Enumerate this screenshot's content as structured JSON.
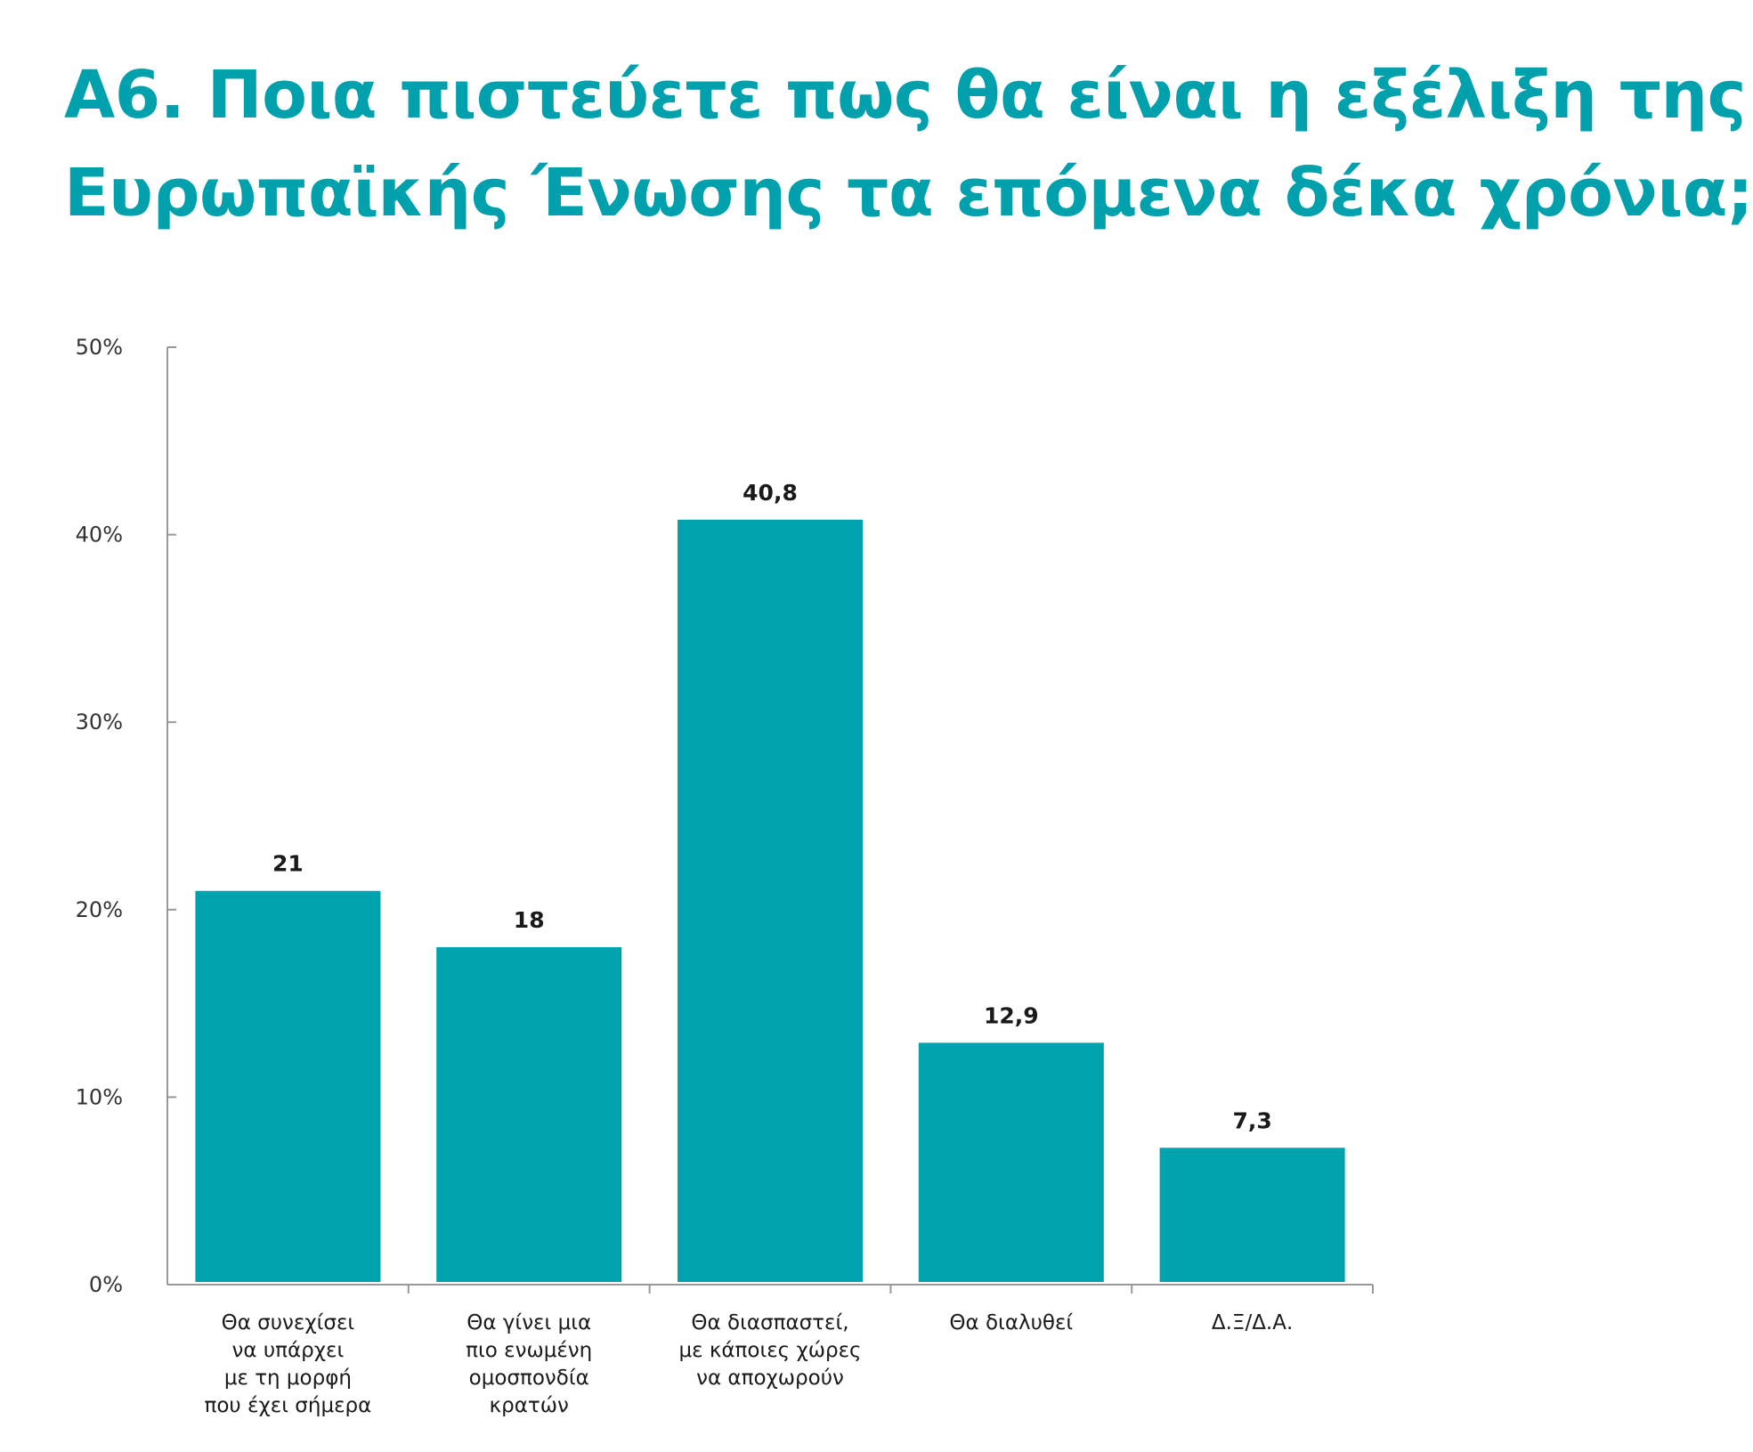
{
  "chart_data": {
    "type": "bar",
    "title_lines": [
      "Α6. Ποια πιστεύετε πως θα είναι η εξέλιξη της",
      "Ευρωπαϊκής Ένωσης τα επόμενα δέκα χρόνια;"
    ],
    "categories": [
      [
        "Θα συνεχίσει",
        "να υπάρχει",
        "με τη μορφή",
        "που έχει σήμερα"
      ],
      [
        "Θα γίνει μια",
        "πιο ενωμένη",
        "ομοσπονδία",
        "κρατών"
      ],
      [
        "Θα διασπαστεί,",
        "με κάποιες χώρες",
        "να αποχωρούν"
      ],
      [
        "Θα διαλυθεί"
      ],
      [
        "Δ.Ξ/Δ.Α."
      ]
    ],
    "values": [
      21,
      18,
      40.8,
      12.9,
      7.3
    ],
    "value_labels": [
      "21",
      "18",
      "40,8",
      "12,9",
      "7,3"
    ],
    "y_ticks": [
      "0%",
      "10%",
      "20%",
      "30%",
      "40%",
      "50%"
    ],
    "ylim": [
      0,
      50
    ],
    "bar_color": "#00a3ad",
    "title_color": "#00a0ad",
    "axis_color": "#999999",
    "grid": false
  }
}
